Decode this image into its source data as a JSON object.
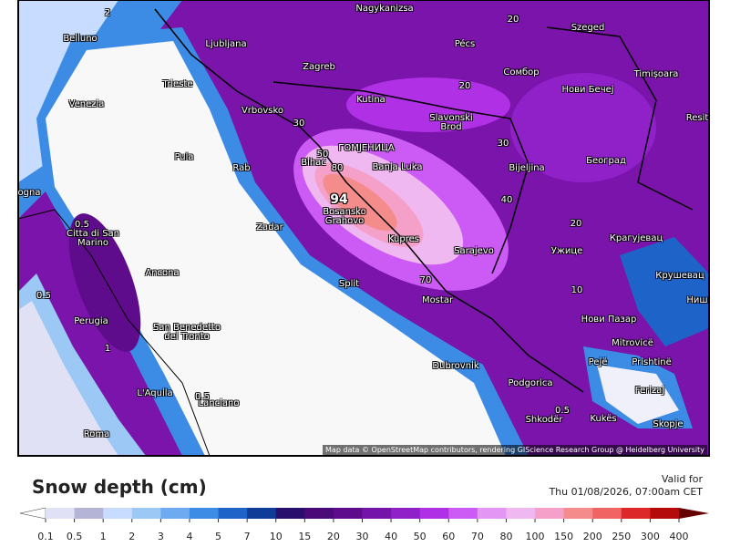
{
  "map": {
    "cities": [
      "Nagykanizsa",
      "Belluno",
      "Ljubljana",
      "Pécs",
      "Szeged",
      "Zagreb",
      "Сомбор",
      "Timișoara",
      "Trieste",
      "Venezia",
      "Kutina",
      "Нови Бечеј",
      "Vrbovsko",
      "Slavonski\nBrod",
      "Resit",
      "Pula",
      "ГОМЈЕНИЦА",
      "Bihać",
      "Banja Luka",
      "Bijeljina",
      "Београд",
      "Rab",
      "ogna",
      "Zadar",
      "Bosansko\nGrahovo",
      "Citta di San\nMarino",
      "Kupres",
      "Sarajevo",
      "Ужице",
      "Крагујевац",
      "Ancona",
      "Split",
      "Крушевац",
      "Mostar",
      "Perugia",
      "Ниш",
      "San Benedetto\ndel Tronto",
      "Нови Пазар",
      "Mitrovicë",
      "Pejë",
      "Prishtinë",
      "Dubrovnik",
      "L'Aquila",
      "Podgorica",
      "Ferizaj",
      "Lanciano",
      "Shkodër",
      "Kukës",
      "Skopje",
      "Roma"
    ],
    "contour_labels": [
      94,
      80,
      70,
      50,
      40,
      30,
      20,
      10,
      0.5,
      0.5,
      1,
      0.5,
      0.5,
      2,
      20,
      30,
      20
    ],
    "attribution": "Map data © OpenStreetMap contributors, rendering GIScience Research Group @ Heidelberg University"
  },
  "legend": {
    "title": "Snow depth (cm)",
    "valid_label": "Valid for",
    "valid_time": "Thu 01/08/2026, 07:00am CET",
    "ticks": [
      0.1,
      0.5,
      1,
      2,
      3,
      4,
      5,
      7,
      10,
      15,
      20,
      30,
      40,
      50,
      60,
      70,
      80,
      100,
      150,
      200,
      250,
      300,
      400
    ],
    "colors": [
      "#ffffff",
      "#e1e1f5",
      "#b4b4d7",
      "#c8dcff",
      "#9bc8f5",
      "#6eaaf0",
      "#3c8ce6",
      "#1e64c8",
      "#0f3c96",
      "#280f6e",
      "#4a0a78",
      "#5e0c8c",
      "#7414a8",
      "#9020c8",
      "#b030e6",
      "#cc5af5",
      "#e496f5",
      "#f0b8f0",
      "#f5a0c8",
      "#f58c8c",
      "#f06464",
      "#dc2828",
      "#b40a0a",
      "#8c0000",
      "#640000"
    ]
  }
}
